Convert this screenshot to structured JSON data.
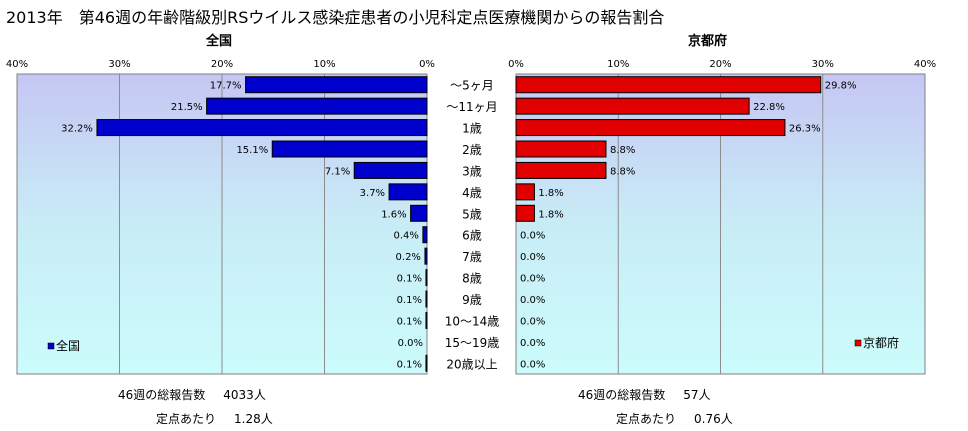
{
  "title": "2013年　第46週の年齢階級別RSウイルス感染症患者の小児科定点医療機関からの報告割合",
  "chart_data": {
    "type": "bar",
    "orientation": "horizontal",
    "categories": [
      "～5ヶ月",
      "～11ヶ月",
      "1歳",
      "2歳",
      "3歳",
      "4歳",
      "5歳",
      "6歳",
      "7歳",
      "8歳",
      "9歳",
      "10～14歳",
      "15～19歳",
      "20歳以上"
    ],
    "xlim": [
      0,
      40
    ],
    "x_ticks": [
      "0%",
      "10%",
      "20%",
      "30%",
      "40%"
    ],
    "grid": true,
    "series": [
      {
        "name": "全国",
        "panel_title": "全国",
        "color": "#0000cc",
        "direction": "left",
        "values": [
          17.7,
          21.5,
          32.2,
          15.1,
          7.1,
          3.7,
          1.6,
          0.4,
          0.2,
          0.1,
          0.1,
          0.1,
          0.0,
          0.1
        ],
        "labels": [
          "17.7%",
          "21.5%",
          "32.2%",
          "15.1%",
          "7.1%",
          "3.7%",
          "1.6%",
          "0.4%",
          "0.2%",
          "0.1%",
          "0.1%",
          "0.1%",
          "0.0%",
          "0.1%"
        ],
        "legend_placement": "bottom-left"
      },
      {
        "name": "京都府",
        "panel_title": "京都府",
        "color": "#e00000",
        "direction": "right",
        "values": [
          29.8,
          22.8,
          26.3,
          8.8,
          8.8,
          1.8,
          1.8,
          0.0,
          0.0,
          0.0,
          0.0,
          0.0,
          0.0,
          0.0
        ],
        "labels": [
          "29.8%",
          "22.8%",
          "26.3%",
          "8.8%",
          "8.8%",
          "1.8%",
          "1.8%",
          "0.0%",
          "0.0%",
          "0.0%",
          "0.0%",
          "0.0%",
          "0.0%",
          "0.0%"
        ],
        "legend_placement": "bottom-right"
      }
    ]
  },
  "footer": {
    "national_total_label": "46週の総報告数",
    "national_total_value": "4033人",
    "national_per_label": "定点あたり",
    "national_per_value": "1.28人",
    "kyoto_total_label": "46週の総報告数",
    "kyoto_total_value": "57人",
    "kyoto_per_label": "定点あたり",
    "kyoto_per_value": "0.76人"
  }
}
